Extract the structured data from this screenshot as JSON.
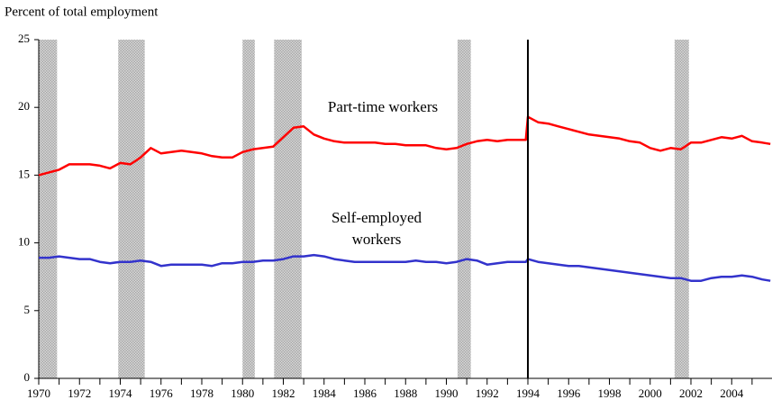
{
  "chart_data": {
    "type": "line",
    "y_axis_label": "Percent of total employment",
    "annotations": [
      "Part-time workers",
      "Self-employed",
      "workers"
    ],
    "x": [
      1970,
      1970.5,
      1971,
      1971.5,
      1972,
      1972.5,
      1973,
      1973.5,
      1974,
      1974.5,
      1975,
      1975.5,
      1976,
      1976.5,
      1977,
      1977.5,
      1978,
      1978.5,
      1979,
      1979.5,
      1980,
      1980.5,
      1981,
      1981.5,
      1982,
      1982.5,
      1983,
      1983.5,
      1984,
      1984.5,
      1985,
      1985.5,
      1986,
      1986.5,
      1987,
      1987.5,
      1988,
      1988.5,
      1989,
      1989.5,
      1990,
      1990.5,
      1991,
      1991.5,
      1992,
      1992.5,
      1993,
      1993.5,
      1993.9,
      1994,
      1994.5,
      1995,
      1995.5,
      1996,
      1996.5,
      1997,
      1997.5,
      1998,
      1998.5,
      1999,
      1999.5,
      2000,
      2000.5,
      2001,
      2001.5,
      2002,
      2002.5,
      2003,
      2003.5,
      2004,
      2004.5,
      2005,
      2005.5,
      2005.9
    ],
    "series": [
      {
        "name": "Part-time workers",
        "color": "#ff0000",
        "values": [
          15.0,
          15.2,
          15.4,
          15.8,
          15.8,
          15.8,
          15.7,
          15.5,
          15.9,
          15.8,
          16.3,
          17.0,
          16.6,
          16.7,
          16.8,
          16.7,
          16.6,
          16.4,
          16.3,
          16.3,
          16.7,
          16.9,
          17.0,
          17.1,
          17.8,
          18.5,
          18.6,
          18.0,
          17.7,
          17.5,
          17.4,
          17.4,
          17.4,
          17.4,
          17.3,
          17.3,
          17.2,
          17.2,
          17.2,
          17.0,
          16.9,
          17.0,
          17.3,
          17.5,
          17.6,
          17.5,
          17.6,
          17.6,
          17.6,
          19.3,
          18.9,
          18.8,
          18.6,
          18.4,
          18.2,
          18.0,
          17.9,
          17.8,
          17.7,
          17.5,
          17.4,
          17.0,
          16.8,
          17.0,
          16.9,
          17.4,
          17.4,
          17.6,
          17.8,
          17.7,
          17.9,
          17.5,
          17.4,
          17.3
        ]
      },
      {
        "name": "Self-employed workers",
        "color": "#3333cc",
        "values": [
          8.9,
          8.9,
          9.0,
          8.9,
          8.8,
          8.8,
          8.6,
          8.5,
          8.6,
          8.6,
          8.7,
          8.6,
          8.3,
          8.4,
          8.4,
          8.4,
          8.4,
          8.3,
          8.5,
          8.5,
          8.6,
          8.6,
          8.7,
          8.7,
          8.8,
          9.0,
          9.0,
          9.1,
          9.0,
          8.8,
          8.7,
          8.6,
          8.6,
          8.6,
          8.6,
          8.6,
          8.6,
          8.7,
          8.6,
          8.6,
          8.5,
          8.6,
          8.8,
          8.7,
          8.4,
          8.5,
          8.6,
          8.6,
          8.6,
          8.8,
          8.6,
          8.5,
          8.4,
          8.3,
          8.3,
          8.2,
          8.1,
          8.0,
          7.9,
          7.8,
          7.7,
          7.6,
          7.5,
          7.4,
          7.4,
          7.2,
          7.2,
          7.4,
          7.5,
          7.5,
          7.6,
          7.5,
          7.3,
          7.2
        ]
      }
    ],
    "shaded_periods": [
      [
        1970,
        1970.9
      ],
      [
        1973.9,
        1975.2
      ],
      [
        1980,
        1980.6
      ],
      [
        1981.55,
        1982.9
      ],
      [
        1990.55,
        1991.2
      ],
      [
        2001.2,
        2001.9
      ]
    ],
    "vertical_line": 1994,
    "xlim": [
      1970,
      2006
    ],
    "xticks": [
      1970,
      1972,
      1974,
      1976,
      1978,
      1980,
      1982,
      1984,
      1986,
      1988,
      1990,
      1992,
      1994,
      1996,
      1998,
      2000,
      2002,
      2004
    ],
    "xminorticks": [
      1971,
      1973,
      1975,
      1977,
      1979,
      1981,
      1983,
      1985,
      1987,
      1989,
      1991,
      1993,
      1995,
      1997,
      1999,
      2001,
      2003,
      2005
    ],
    "ylim": [
      0,
      25
    ],
    "yticks": [
      0,
      5,
      10,
      15,
      20,
      25
    ],
    "grid": false
  }
}
